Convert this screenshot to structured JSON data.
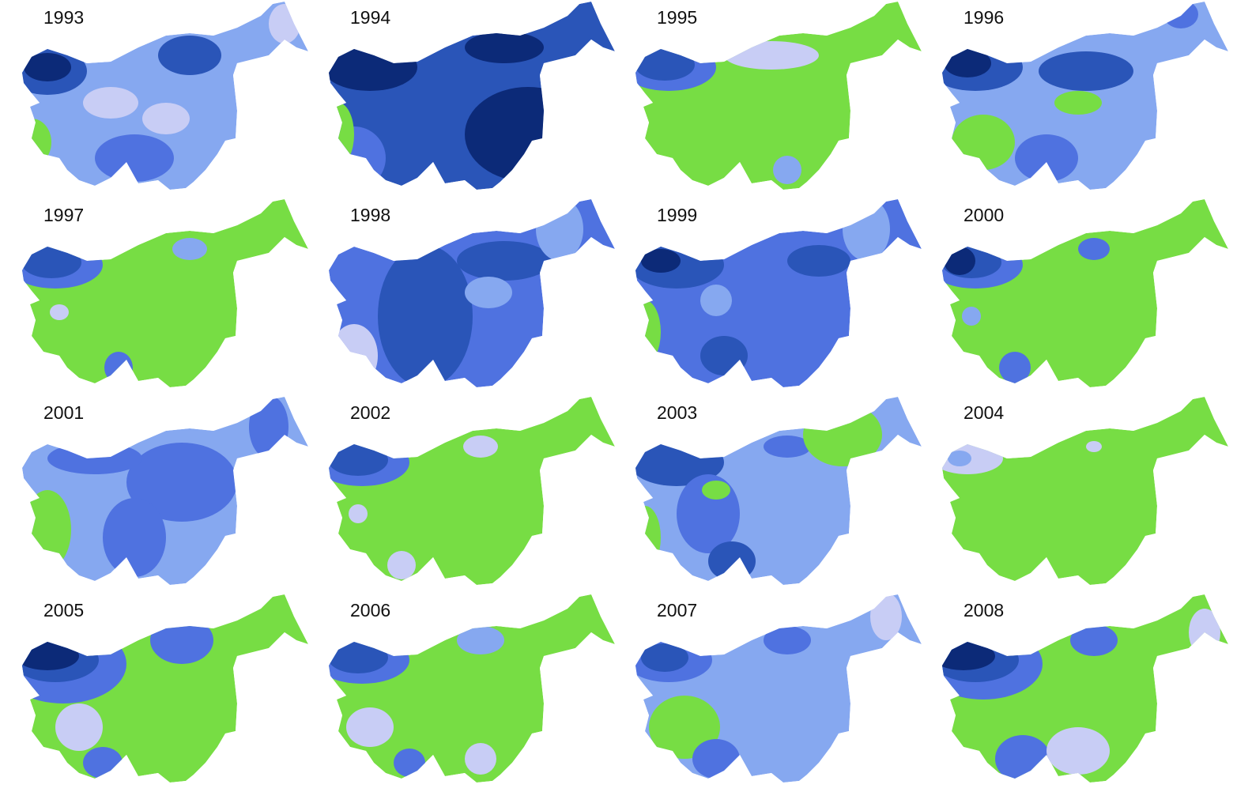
{
  "maps": [
    {
      "title": "1993"
    },
    {
      "title": "1994"
    },
    {
      "title": "1995"
    },
    {
      "title": "1996"
    },
    {
      "title": "1997"
    },
    {
      "title": "1998"
    },
    {
      "title": "1999"
    },
    {
      "title": "2000"
    },
    {
      "title": "2001"
    },
    {
      "title": "2002"
    },
    {
      "title": "2003"
    },
    {
      "title": "2004"
    },
    {
      "title": "2005"
    },
    {
      "title": "2006"
    },
    {
      "title": "2007"
    },
    {
      "title": "2008"
    }
  ]
}
